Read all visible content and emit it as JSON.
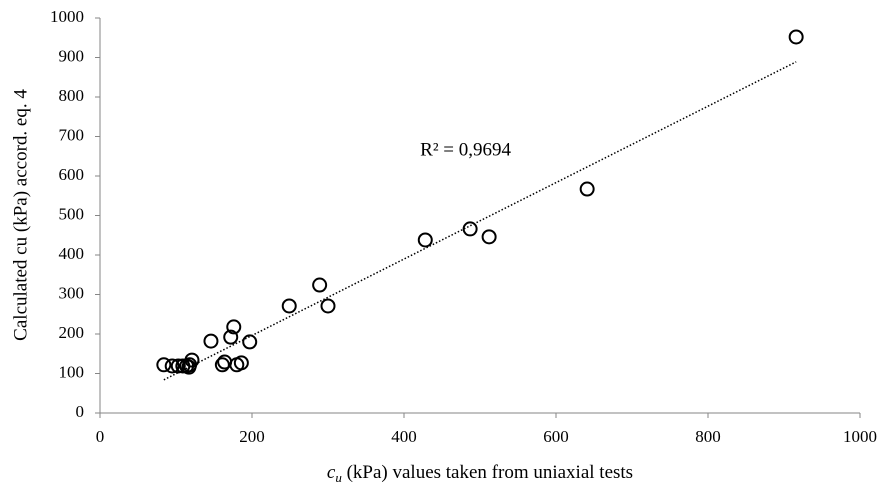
{
  "chart_data": {
    "type": "scatter",
    "x": [
      84,
      95,
      103,
      109,
      114,
      118,
      121,
      117,
      146,
      161,
      164,
      172,
      176,
      180,
      186,
      197,
      249,
      289,
      300,
      428,
      487,
      512,
      641,
      916
    ],
    "values": [
      122,
      119,
      119,
      119,
      119,
      122,
      134,
      116,
      182,
      122,
      129,
      192,
      218,
      122,
      127,
      180,
      271,
      324,
      271,
      438,
      466,
      446,
      567,
      952
    ],
    "color": "#000000",
    "trendline": {
      "x": [
        84,
        916
      ],
      "y": [
        84,
        889
      ]
    },
    "annotation": "R² = 0,9694",
    "xlabel_symbol": "c",
    "xlabel_subscript": "u",
    "xlabel_rest": " (kPa) values taken from uniaxial tests",
    "ylabel": "Calculated cu (kPa) accord. eq. 4",
    "xlim": [
      0,
      1000
    ],
    "xticks": [
      0,
      200,
      400,
      600,
      800,
      1000
    ],
    "ylim": [
      0,
      1000
    ],
    "yticks": [
      0,
      100,
      200,
      300,
      400,
      500,
      600,
      700,
      800,
      900,
      1000
    ]
  }
}
